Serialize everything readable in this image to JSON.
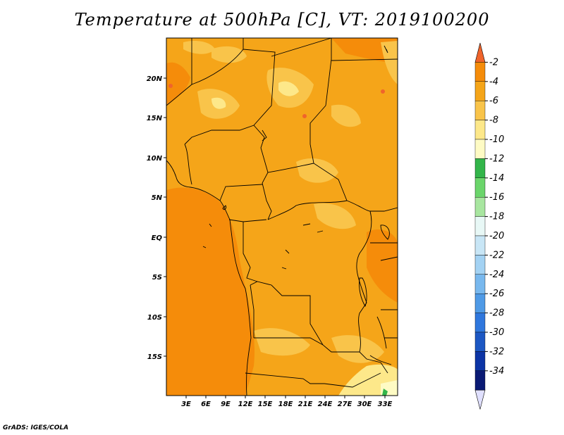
{
  "title": "Temperature at 500hPa [C], VT: 2019100200",
  "footer": "GrADS: IGES/COLA",
  "map": {
    "lat_ticks": [
      "20N",
      "15N",
      "10N",
      "5N",
      "EQ",
      "5S",
      "10S",
      "15S"
    ],
    "lon_ticks": [
      "3E",
      "6E",
      "9E",
      "12E",
      "15E",
      "18E",
      "21E",
      "24E",
      "27E",
      "30E",
      "33E"
    ]
  },
  "colorbar": {
    "labels": [
      "-2",
      "-4",
      "-6",
      "-8",
      "-10",
      "-12",
      "-14",
      "-16",
      "-18",
      "-20",
      "-22",
      "-24",
      "-26",
      "-28",
      "-30",
      "-32",
      "-34"
    ],
    "colors": [
      "#f0642b",
      "#f58c0a",
      "#f5a519",
      "#f9c44a",
      "#fde88a",
      "#fefbc4",
      "#33b54a",
      "#6bd56b",
      "#a8e6a0",
      "#e8f8f6",
      "#c8e6f6",
      "#a3d2f3",
      "#78b8ee",
      "#4f9ae6",
      "#2f77dd",
      "#1c57c3",
      "#0c34a5",
      "#0a1a74",
      "#e0e0ff"
    ]
  }
}
